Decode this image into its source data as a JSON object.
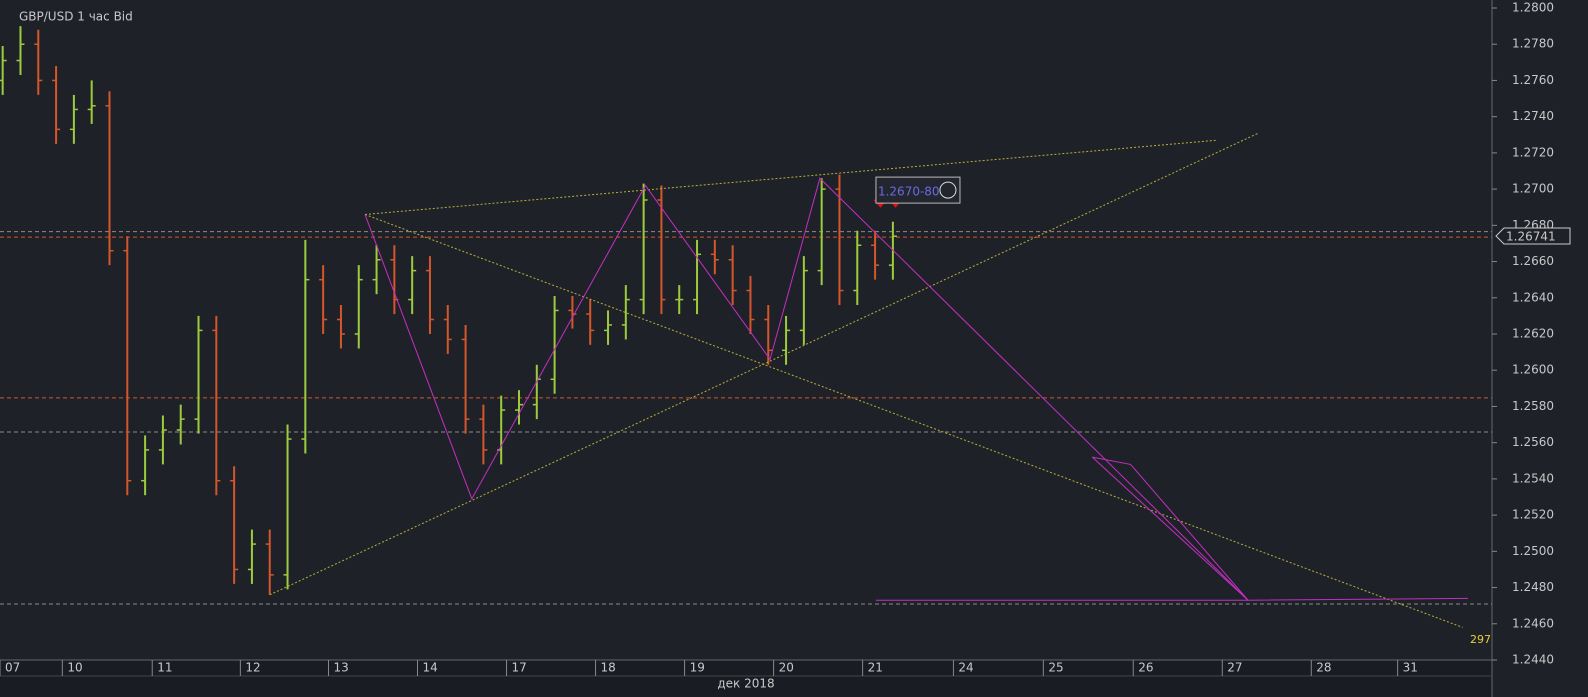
{
  "chart_data": {
    "type": "ohlc",
    "title": "GBP/USD  1 час Bid",
    "xlabel": "дек 2018",
    "up_color": "#9ccc3c",
    "down_color": "#d4572a",
    "x": [
      0.3,
      0.5,
      0.7,
      0.9,
      1.1,
      1.3,
      1.5,
      1.7,
      1.9,
      2.1,
      2.3,
      2.5,
      2.7,
      2.9,
      3.1,
      3.3,
      3.5,
      3.7,
      3.9,
      4.1,
      4.3,
      4.5,
      4.7,
      4.9,
      5.1,
      5.3,
      5.5,
      5.7,
      5.9,
      6.1,
      6.3,
      6.5,
      6.7,
      6.9,
      7.1,
      7.3,
      7.5,
      7.7,
      7.9,
      8.1,
      8.3,
      8.5,
      8.7,
      8.9,
      9.1,
      9.3,
      9.5,
      9.7,
      9.9,
      10.1,
      10.3
    ],
    "open": [
      1.276,
      1.2771,
      1.278,
      1.276,
      1.2733,
      1.2744,
      1.2746,
      1.2666,
      1.2539,
      1.2556,
      1.2567,
      1.2573,
      1.2622,
      1.2539,
      1.249,
      1.2504,
      1.2487,
      1.2562,
      1.265,
      1.2628,
      1.262,
      1.265,
      1.2661,
      1.2639,
      1.2655,
      1.2628,
      1.2617,
      1.2573,
      1.2556,
      1.2578,
      1.2581,
      1.2595,
      1.2633,
      1.2631,
      1.2622,
      1.2625,
      1.2639,
      1.2694,
      1.2639,
      1.2639,
      1.2664,
      1.2661,
      1.2644,
      1.2628,
      1.2611,
      1.2622,
      1.2655,
      1.27,
      1.2644,
      1.2669,
      1.2658
    ],
    "high": [
      1.2779,
      1.279,
      1.2788,
      1.2768,
      1.2752,
      1.276,
      1.2754,
      1.2674,
      1.2564,
      1.2575,
      1.2581,
      1.263,
      1.263,
      1.2547,
      1.2512,
      1.2512,
      1.257,
      1.2672,
      1.2658,
      1.2636,
      1.2658,
      1.2669,
      1.2669,
      1.2663,
      1.2663,
      1.2636,
      1.2625,
      1.2581,
      1.2586,
      1.2589,
      1.2603,
      1.2641,
      1.2641,
      1.2639,
      1.2633,
      1.2647,
      1.2703,
      1.2702,
      1.2647,
      1.2672,
      1.2672,
      1.2669,
      1.2652,
      1.2636,
      1.263,
      1.2663,
      1.2706,
      1.2708,
      1.2677,
      1.2677,
      1.2682
    ],
    "low": [
      1.2752,
      1.2763,
      1.2752,
      1.2725,
      1.2725,
      1.2736,
      1.2658,
      1.2531,
      1.2531,
      1.2548,
      1.2559,
      1.2565,
      1.2531,
      1.2482,
      1.2482,
      1.2476,
      1.2479,
      1.2554,
      1.262,
      1.2612,
      1.2612,
      1.2642,
      1.2631,
      1.2631,
      1.262,
      1.2609,
      1.2565,
      1.2548,
      1.2548,
      1.257,
      1.2573,
      1.2587,
      1.2623,
      1.2614,
      1.2614,
      1.2617,
      1.2631,
      1.2631,
      1.2631,
      1.2631,
      1.2653,
      1.2636,
      1.262,
      1.2603,
      1.2603,
      1.2614,
      1.2647,
      1.2636,
      1.2636,
      1.265,
      1.265
    ],
    "close": [
      1.2771,
      1.278,
      1.276,
      1.2733,
      1.2744,
      1.2746,
      1.2666,
      1.2539,
      1.2556,
      1.2567,
      1.2573,
      1.2622,
      1.2539,
      1.249,
      1.2504,
      1.2487,
      1.2562,
      1.265,
      1.2628,
      1.262,
      1.265,
      1.2661,
      1.2639,
      1.2655,
      1.2628,
      1.2617,
      1.2573,
      1.2556,
      1.2578,
      1.2581,
      1.2595,
      1.2633,
      1.2631,
      1.2622,
      1.2625,
      1.2639,
      1.2694,
      1.2639,
      1.2639,
      1.2664,
      1.2661,
      1.2644,
      1.2628,
      1.2611,
      1.2622,
      1.2655,
      1.27,
      1.2644,
      1.2669,
      1.2658,
      1.2674
    ],
    "xlim": [
      0.27,
      17.03
    ],
    "ylim": [
      1.244,
      1.28
    ],
    "xticks": [
      {
        "value": 0.27,
        "label": "07"
      },
      {
        "value": 0.97,
        "label": "10"
      },
      {
        "value": 1.98,
        "label": "11"
      },
      {
        "value": 2.97,
        "label": "12"
      },
      {
        "value": 3.96,
        "label": "13"
      },
      {
        "value": 4.96,
        "label": "14"
      },
      {
        "value": 5.96,
        "label": "17"
      },
      {
        "value": 6.96,
        "label": "18"
      },
      {
        "value": 7.96,
        "label": "19"
      },
      {
        "value": 8.96,
        "label": "20"
      },
      {
        "value": 9.96,
        "label": "21"
      },
      {
        "value": 10.98,
        "label": "24"
      },
      {
        "value": 11.99,
        "label": "25"
      },
      {
        "value": 13.0,
        "label": "26"
      },
      {
        "value": 14.0,
        "label": "27"
      },
      {
        "value": 15.0,
        "label": "28"
      },
      {
        "value": 15.97,
        "label": "31"
      }
    ],
    "yticks": [
      {
        "value": 1.244,
        "label": "1.2440"
      },
      {
        "value": 1.246,
        "label": "1.2460"
      },
      {
        "value": 1.248,
        "label": "1.2480"
      },
      {
        "value": 1.25,
        "label": "1.2500"
      },
      {
        "value": 1.252,
        "label": "1.2520"
      },
      {
        "value": 1.254,
        "label": "1.2540"
      },
      {
        "value": 1.256,
        "label": "1.2560"
      },
      {
        "value": 1.258,
        "label": "1.2580"
      },
      {
        "value": 1.26,
        "label": "1.2600"
      },
      {
        "value": 1.262,
        "label": "1.2620"
      },
      {
        "value": 1.264,
        "label": "1.2640"
      },
      {
        "value": 1.266,
        "label": "1.2660"
      },
      {
        "value": 1.268,
        "label": "1.2680"
      },
      {
        "value": 1.27,
        "label": "1.2700"
      },
      {
        "value": 1.272,
        "label": "1.2720"
      },
      {
        "value": 1.274,
        "label": "1.2740"
      },
      {
        "value": 1.276,
        "label": "1.2760"
      },
      {
        "value": 1.278,
        "label": "1.2780"
      },
      {
        "value": 1.28,
        "label": "1.2800"
      }
    ],
    "hlines": [
      {
        "value": 1.26735,
        "color": "#d4572a"
      },
      {
        "value": 1.25847,
        "color": "#d4572a"
      },
      {
        "value": 1.25659,
        "color": "#8a8a8a"
      },
      {
        "value": 1.24709,
        "color": "#8a8a8a"
      },
      {
        "value": 1.26765,
        "color": "#8a8a8a"
      }
    ],
    "trendlines": [
      {
        "x": [
          4.37,
          13.94
        ],
        "y": [
          1.2686,
          1.2727
        ],
        "color": "#b8b03a"
      },
      {
        "x": [
          4.37,
          16.7
        ],
        "y": [
          1.2686,
          1.2458
        ],
        "color": "#b8b03a"
      },
      {
        "x": [
          3.3,
          14.41
        ],
        "y": [
          1.2476,
          1.2731
        ],
        "color": "#b8b03a"
      }
    ],
    "drawings": [
      {
        "x": [
          4.37,
          5.57,
          7.52,
          8.92,
          9.48,
          14.29,
          16.76
        ],
        "y": [
          1.2686,
          1.2529,
          1.2702,
          1.2606,
          1.2706,
          1.2473,
          1.2474
        ],
        "color": "#c32fc3"
      },
      {
        "x": [
          12.54,
          12.97,
          14.29,
          12.54
        ],
        "y": [
          1.2552,
          1.2548,
          1.2473,
          1.2552
        ],
        "color": "#c32fc3"
      },
      {
        "x": [
          10.11,
          14.29
        ],
        "y": [
          1.2473,
          1.2473
        ],
        "color": "#c32fc3"
      }
    ],
    "signals": {
      "x": [
        10.16,
        10.33
      ],
      "y": [
        1.2693,
        1.2693
      ],
      "color": "#e01010"
    },
    "price_box": {
      "label": "1.2670-80",
      "x": 10.11,
      "y": 1.27
    },
    "last_price": 1.26741,
    "corner_label": 297
  }
}
